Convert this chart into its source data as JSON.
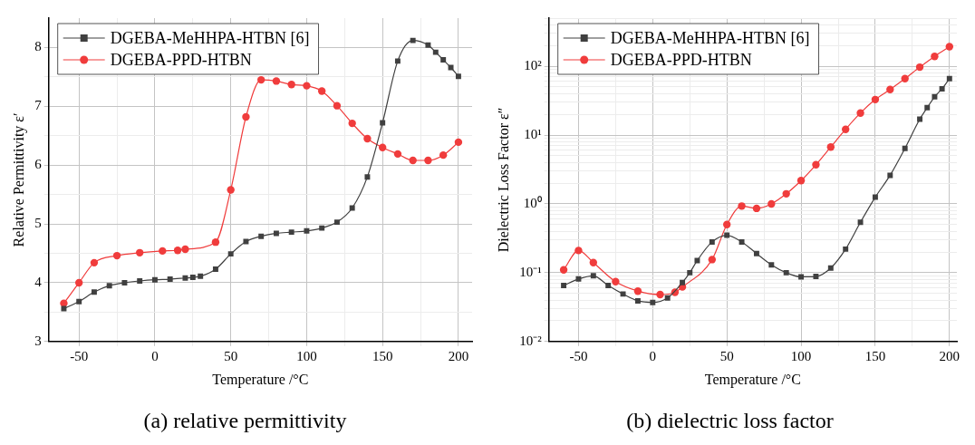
{
  "chart_data": [
    {
      "type": "line",
      "xlabel": "Temperature /°C",
      "ylabel": "Relative Permittivity ε′",
      "annotations": [
        "(a) relative permittivity"
      ],
      "legend": "top left",
      "grid": true,
      "line_style": "solid",
      "xlim": [
        -70,
        209
      ],
      "xticks": [
        -50,
        {
          "value": -25,
          "label": null
        },
        0,
        {
          "value": 25,
          "label": null
        },
        50,
        {
          "value": 75,
          "label": null
        },
        100,
        {
          "value": 125,
          "label": null
        },
        150,
        {
          "value": 175,
          "label": null
        },
        200
      ],
      "ylim": [
        3,
        8.5
      ],
      "yticks": [
        3,
        {
          "value": 3.5,
          "label": null
        },
        4,
        {
          "value": 4.5,
          "label": null
        },
        5,
        {
          "value": 5.5,
          "label": null
        },
        6,
        {
          "value": 6.5,
          "label": null
        },
        7,
        {
          "value": 7.5,
          "label": null
        },
        8
      ],
      "series": [
        {
          "name": "DGEBA-MeHHPA-HTBN [6]",
          "color": "#404040",
          "marker": "square",
          "x": [
            -60,
            -50,
            -40,
            -30,
            -20,
            -10,
            0,
            10,
            20,
            25,
            30,
            40,
            50,
            60,
            70,
            80,
            90,
            100,
            110,
            120,
            130,
            140,
            150,
            160,
            170,
            180,
            185,
            190,
            195,
            200
          ],
          "values": [
            3.56,
            3.68,
            3.84,
            3.95,
            4.0,
            4.03,
            4.05,
            4.06,
            4.08,
            4.09,
            4.11,
            4.23,
            4.49,
            4.7,
            4.79,
            4.84,
            4.86,
            4.88,
            4.93,
            5.03,
            5.27,
            5.8,
            6.72,
            7.77,
            8.12,
            8.04,
            7.92,
            7.79,
            7.66,
            7.51
          ]
        },
        {
          "name": "DGEBA-PPD-HTBN",
          "color": "#f03c3c",
          "marker": "circle",
          "x": [
            -60,
            -50,
            -40,
            -25,
            -10,
            5,
            15,
            20,
            40,
            50,
            60,
            70,
            80,
            90,
            100,
            110,
            120,
            130,
            140,
            150,
            160,
            170,
            180,
            190,
            200
          ],
          "values": [
            3.65,
            4.0,
            4.34,
            4.46,
            4.51,
            4.54,
            4.55,
            4.57,
            4.69,
            5.58,
            6.82,
            7.45,
            7.43,
            7.37,
            7.35,
            7.26,
            7.01,
            6.71,
            6.45,
            6.3,
            6.19,
            6.08,
            6.08,
            6.17,
            6.39
          ]
        }
      ]
    },
    {
      "type": "line",
      "xlabel": "Temperature /°C",
      "ylabel": "Dielectric Loss Factor ε″",
      "annotations": [
        "(b) dielectric loss factor"
      ],
      "legend": "top left",
      "grid": true,
      "line_style": "solid",
      "log": "y",
      "xlim": [
        -70,
        205
      ],
      "xticks": [
        -50,
        {
          "value": -25,
          "label": null
        },
        0,
        {
          "value": 25,
          "label": null
        },
        50,
        {
          "value": 75,
          "label": null
        },
        100,
        {
          "value": 125,
          "label": null
        },
        150,
        {
          "value": 175,
          "label": null
        },
        200
      ],
      "ylim": [
        0.01,
        500
      ],
      "yticks": [
        {
          "value": 0.01,
          "label": "10⁻²"
        },
        {
          "value": 0.02,
          "label": null
        },
        {
          "value": 0.03,
          "label": null
        },
        {
          "value": 0.04,
          "label": null
        },
        {
          "value": 0.05,
          "label": null
        },
        {
          "value": 0.06,
          "label": null
        },
        {
          "value": 0.07,
          "label": null
        },
        {
          "value": 0.08,
          "label": null
        },
        {
          "value": 0.09,
          "label": null
        },
        {
          "value": 0.1,
          "label": "10⁻¹"
        },
        {
          "value": 0.2,
          "label": null
        },
        {
          "value": 0.3,
          "label": null
        },
        {
          "value": 0.4,
          "label": null
        },
        {
          "value": 0.5,
          "label": null
        },
        {
          "value": 0.6,
          "label": null
        },
        {
          "value": 0.7,
          "label": null
        },
        {
          "value": 0.8,
          "label": null
        },
        {
          "value": 0.9,
          "label": null
        },
        {
          "value": 1,
          "label": "10⁰"
        },
        {
          "value": 2,
          "label": null
        },
        {
          "value": 3,
          "label": null
        },
        {
          "value": 4,
          "label": null
        },
        {
          "value": 5,
          "label": null
        },
        {
          "value": 6,
          "label": null
        },
        {
          "value": 7,
          "label": null
        },
        {
          "value": 8,
          "label": null
        },
        {
          "value": 9,
          "label": null
        },
        {
          "value": 10,
          "label": "10¹"
        },
        {
          "value": 20,
          "label": null
        },
        {
          "value": 30,
          "label": null
        },
        {
          "value": 40,
          "label": null
        },
        {
          "value": 50,
          "label": null
        },
        {
          "value": 60,
          "label": null
        },
        {
          "value": 70,
          "label": null
        },
        {
          "value": 80,
          "label": null
        },
        {
          "value": 90,
          "label": null
        },
        {
          "value": 100,
          "label": "10²"
        },
        {
          "value": 200,
          "label": null
        },
        {
          "value": 300,
          "label": null
        },
        {
          "value": 400,
          "label": null
        },
        {
          "value": 500,
          "label": null
        }
      ],
      "series": [
        {
          "name": "DGEBA-MeHHPA-HTBN [6]",
          "color": "#404040",
          "marker": "square",
          "x": [
            -60,
            -50,
            -40,
            -30,
            -20,
            -10,
            0,
            10,
            20,
            25,
            30,
            40,
            50,
            60,
            70,
            80,
            90,
            100,
            110,
            120,
            130,
            140,
            150,
            160,
            170,
            180,
            185,
            190,
            195,
            200
          ],
          "values": [
            0.065,
            0.081,
            0.09,
            0.065,
            0.049,
            0.039,
            0.037,
            0.043,
            0.072,
            0.1,
            0.15,
            0.28,
            0.35,
            0.28,
            0.19,
            0.13,
            0.1,
            0.087,
            0.088,
            0.117,
            0.22,
            0.54,
            1.25,
            2.6,
            6.4,
            17,
            25,
            36,
            47,
            66
          ]
        },
        {
          "name": "DGEBA-PPD-HTBN",
          "color": "#f03c3c",
          "marker": "circle",
          "x": [
            -60,
            -50,
            -40,
            -25,
            -10,
            5,
            15,
            20,
            40,
            50,
            60,
            70,
            80,
            90,
            100,
            110,
            120,
            130,
            140,
            150,
            160,
            170,
            180,
            190,
            200
          ],
          "values": [
            0.11,
            0.21,
            0.14,
            0.074,
            0.054,
            0.048,
            0.052,
            0.062,
            0.155,
            0.5,
            0.93,
            0.86,
            1.0,
            1.4,
            2.18,
            3.7,
            6.7,
            12.1,
            20.9,
            32.8,
            46,
            66,
            97,
            139,
            192
          ]
        }
      ]
    }
  ]
}
